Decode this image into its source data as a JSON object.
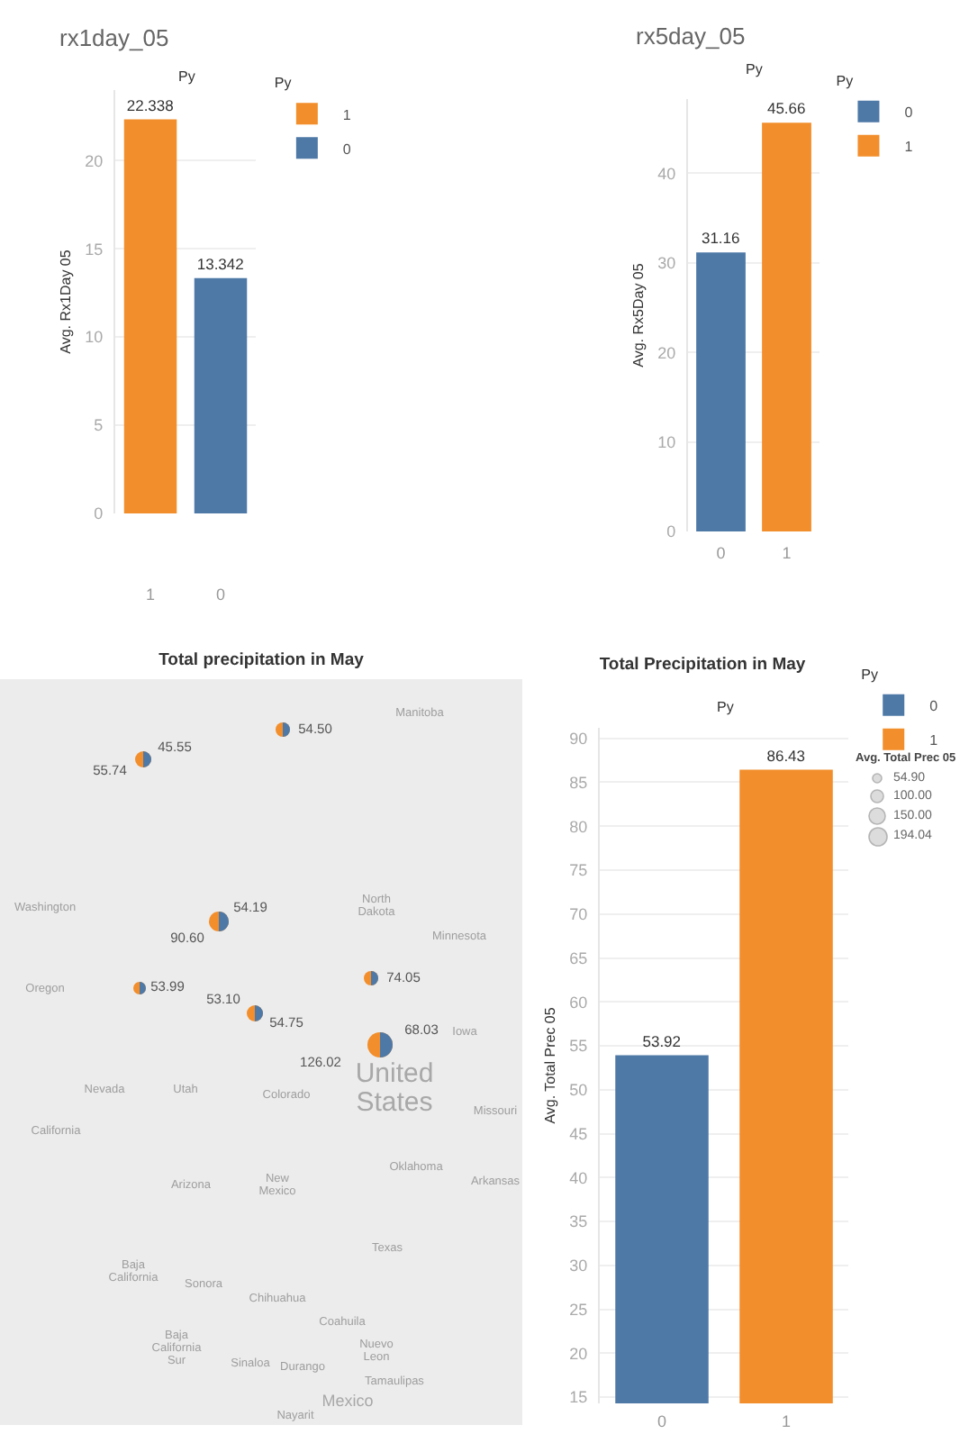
{
  "chart_data": [
    {
      "type": "bar",
      "title": "rx1day_05",
      "xlabel": "Py",
      "ylabel": "Avg. Rx1Day 05",
      "legend_title": "Py",
      "categories": [
        "1",
        "0"
      ],
      "series": [
        {
          "name": "1",
          "color": "#f28e2b",
          "values": [
            22.338,
            null
          ]
        },
        {
          "name": "0",
          "color": "#4e79a7",
          "values": [
            null,
            13.342
          ]
        }
      ],
      "ylim": [
        0,
        24
      ],
      "yticks": [
        0,
        5,
        10,
        15,
        20
      ],
      "grid": "y",
      "legend": "top right",
      "data_labels": true
    },
    {
      "type": "bar",
      "title": "rx5day_05",
      "xlabel": "Py",
      "ylabel": "Avg. Rx5Day 05",
      "legend_title": "Py",
      "categories": [
        "0",
        "1"
      ],
      "series": [
        {
          "name": "0",
          "color": "#4e79a7",
          "values": [
            31.16,
            null
          ]
        },
        {
          "name": "1",
          "color": "#f28e2b",
          "values": [
            null,
            45.66
          ]
        }
      ],
      "ylim": [
        0,
        48.3
      ],
      "yticks": [
        0,
        10,
        20,
        30,
        40
      ],
      "grid": "y",
      "legend": "top right",
      "data_labels": true
    },
    {
      "type": "other",
      "title": "Total precipitation in May",
      "legend_title": "Avg. Total Prec 05",
      "annotations": [
        "45.55",
        "55.74",
        "54.50",
        "54.19",
        "90.60",
        "53.99",
        "53.10",
        "54.75",
        "74.05",
        "68.03",
        "126.02",
        "54.90",
        "100.00",
        "150.00",
        "194.04",
        "Manitoba",
        "Washington",
        "North Dakota",
        "Minnesota",
        "Oregon",
        "Iowa",
        "Nevada",
        "Utah",
        "Colorado",
        "United States",
        "Missouri",
        "California",
        "Oklahoma",
        "Arkansas",
        "Arizona",
        "New Mexico",
        "Texas",
        "Baja California",
        "Sonora",
        "Chihuahua",
        "Coahuila",
        "Baja California Sur",
        "Nuevo Leon",
        "Sinaloa",
        "Durango",
        "Tamaulipas",
        "Mexico",
        "Nayarit"
      ]
    },
    {
      "type": "bar",
      "title": "Total Precipitation in May",
      "xlabel": "Py",
      "ylabel": "Avg. Total Prec 05",
      "legend_title": "Py",
      "categories": [
        "0",
        "1"
      ],
      "series": [
        {
          "name": "0",
          "color": "#4e79a7",
          "values": [
            53.92,
            null
          ]
        },
        {
          "name": "1",
          "color": "#f28e2b",
          "values": [
            null,
            86.43
          ]
        }
      ],
      "ylim": [
        14.3,
        91.2
      ],
      "yticks": [
        15,
        20,
        25,
        30,
        35,
        40,
        45,
        50,
        55,
        60,
        65,
        70,
        75,
        80,
        85,
        90
      ],
      "grid": "y",
      "legend": "top right",
      "data_labels": true
    }
  ]
}
